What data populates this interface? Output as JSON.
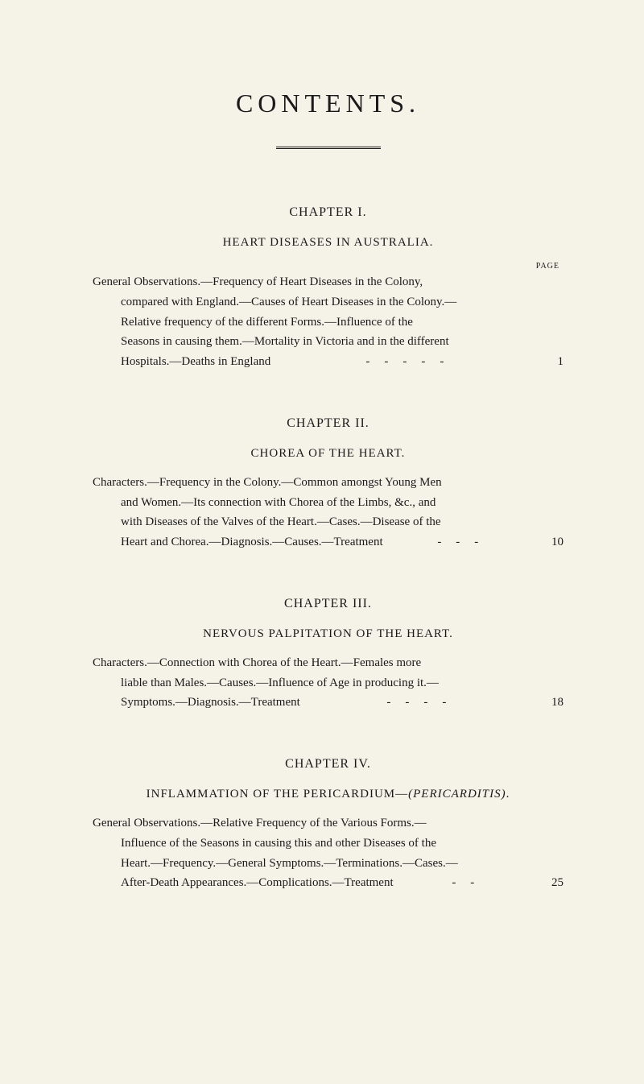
{
  "page": {
    "background_color": "#f5f2e8",
    "text_color": "#1a1a1a",
    "title": "CONTENTS.",
    "page_label": "PAGE"
  },
  "chapters": {
    "ch1": {
      "heading": "CHAPTER I.",
      "subtitle": "HEART DISEASES IN AUSTRALIA.",
      "line1": "General Observations.—Frequency of Heart Diseases in the Colony,",
      "line2": "compared with England.—Causes of Heart Diseases in the Colony.—",
      "line3": "Relative frequency of the different Forms.—Influence of the",
      "line4": "Seasons in causing them.—Mortality in Victoria and in the different",
      "last_text": "Hospitals.—Deaths in England",
      "dots": "-----",
      "page": "1"
    },
    "ch2": {
      "heading": "CHAPTER II.",
      "subtitle": "CHOREA OF THE HEART.",
      "line1": "Characters.—Frequency in the Colony.—Common amongst Young Men",
      "line2": "and Women.—Its connection with Chorea of the Limbs, &c., and",
      "line3": "with Diseases of the Valves of the Heart.—Cases.—Disease of the",
      "last_text": "Heart and Chorea.—Diagnosis.—Causes.—Treatment",
      "dots": "---",
      "page": "10"
    },
    "ch3": {
      "heading": "CHAPTER III.",
      "subtitle": "NERVOUS PALPITATION OF THE HEART.",
      "line1": "Characters.—Connection with Chorea of the Heart.—Females more",
      "line2": "liable than Males.—Causes.—Influence of Age in producing it.—",
      "last_text": "Symptoms.—Diagnosis.—Treatment",
      "dots": "----",
      "page": "18"
    },
    "ch4": {
      "heading": "CHAPTER IV.",
      "subtitle": "INFLAMMATION OF THE PERICARDIUM—(PERICARDITIS).",
      "line1": "General Observations.—Relative Frequency of the Various Forms.—",
      "line2": "Influence of the Seasons in causing this and other Diseases of the",
      "line3": "Heart.—Frequency.—General Symptoms.—Terminations.—Cases.—",
      "last_text": "After-Death Appearances.—Complications.—Treatment",
      "dots": "--",
      "page": "25"
    }
  }
}
